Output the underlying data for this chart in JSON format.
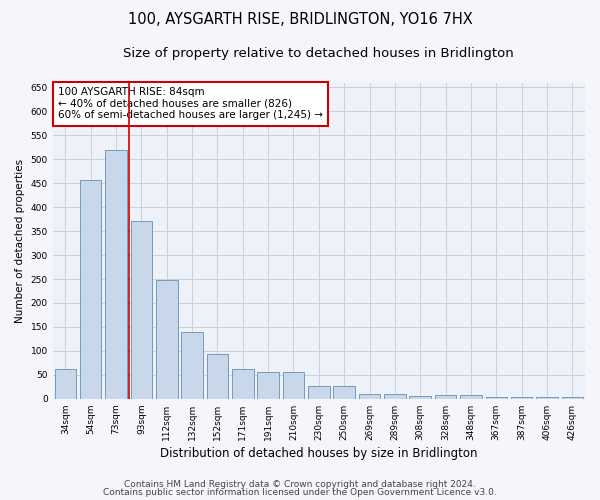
{
  "title": "100, AYSGARTH RISE, BRIDLINGTON, YO16 7HX",
  "subtitle": "Size of property relative to detached houses in Bridlington",
  "xlabel": "Distribution of detached houses by size in Bridlington",
  "ylabel": "Number of detached properties",
  "categories": [
    "34sqm",
    "54sqm",
    "73sqm",
    "93sqm",
    "112sqm",
    "132sqm",
    "152sqm",
    "171sqm",
    "191sqm",
    "210sqm",
    "230sqm",
    "250sqm",
    "269sqm",
    "289sqm",
    "308sqm",
    "328sqm",
    "348sqm",
    "367sqm",
    "387sqm",
    "406sqm",
    "426sqm"
  ],
  "values": [
    62,
    457,
    519,
    370,
    247,
    139,
    93,
    62,
    57,
    55,
    26,
    26,
    10,
    11,
    6,
    7,
    8,
    3,
    4,
    3,
    3
  ],
  "bar_color": "#c8d8ea",
  "bar_edge_color": "#6090b8",
  "grid_color": "#c8d0dc",
  "bg_color": "#eef2f8",
  "fig_color": "#f4f6fa",
  "redline_x": 2.5,
  "annotation_text": "100 AYSGARTH RISE: 84sqm\n← 40% of detached houses are smaller (826)\n60% of semi-detached houses are larger (1,245) →",
  "annotation_box_color": "#ffffff",
  "annotation_box_edge": "#cc0000",
  "redline_color": "#cc0000",
  "ylim": [
    0,
    660
  ],
  "yticks": [
    0,
    50,
    100,
    150,
    200,
    250,
    300,
    350,
    400,
    450,
    500,
    550,
    600,
    650
  ],
  "footer1": "Contains HM Land Registry data © Crown copyright and database right 2024.",
  "footer2": "Contains public sector information licensed under the Open Government Licence v3.0.",
  "title_fontsize": 10.5,
  "subtitle_fontsize": 9.5,
  "xlabel_fontsize": 8.5,
  "ylabel_fontsize": 7.5,
  "tick_fontsize": 6.5,
  "annotation_fontsize": 7.5,
  "footer_fontsize": 6.5
}
